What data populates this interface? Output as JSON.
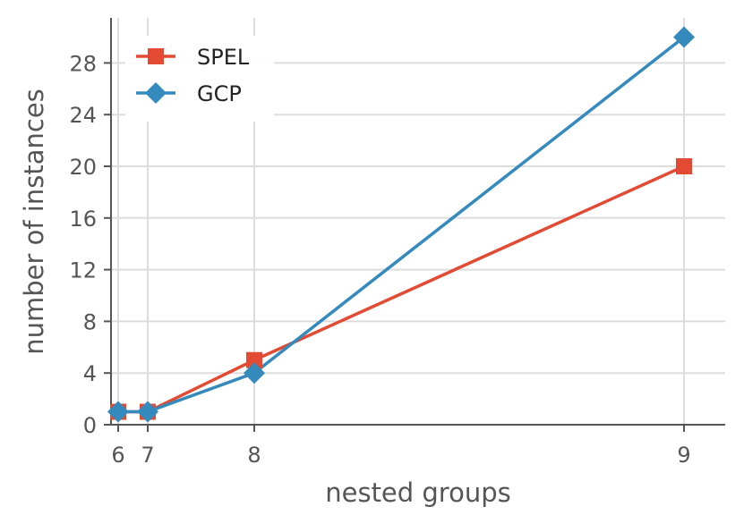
{
  "chart_data": {
    "type": "line",
    "title": "",
    "xlabel": "nested groups",
    "ylabel": "number of instances",
    "x": [
      6,
      7,
      8,
      9
    ],
    "x_tick_labels": [
      "6",
      "7",
      "8",
      "9"
    ],
    "y_ticks": [
      0,
      4,
      8,
      12,
      16,
      20,
      24,
      28
    ],
    "y_tick_labels": [
      "0",
      "4",
      "8",
      "12",
      "16",
      "20",
      "24",
      "28"
    ],
    "ylim": [
      0,
      31
    ],
    "grid": true,
    "legend_position": "top-left",
    "series": [
      {
        "name": "SPEL",
        "color": "#e24a33",
        "marker": "square",
        "values": [
          1,
          1,
          5,
          20
        ]
      },
      {
        "name": "GCP",
        "color": "#348abd",
        "marker": "diamond",
        "values": [
          1,
          1,
          4,
          30
        ]
      }
    ]
  }
}
